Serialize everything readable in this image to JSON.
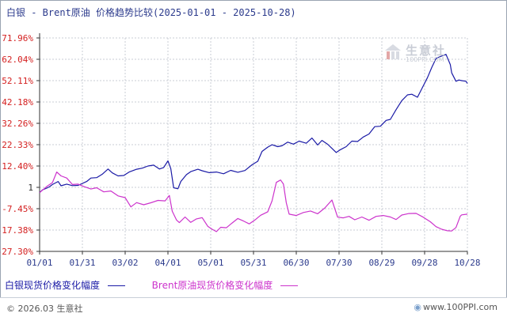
{
  "header": {
    "title": "白银 - Brent原油 价格趋势比较(2025-01-01 - 2025-10-28)"
  },
  "watermark": {
    "name": "生意社",
    "url": "100PPI.COM"
  },
  "legend": {
    "silver_label": "白银现货价格变化幅度",
    "brent_label": "Brent原油现货价格变化幅度"
  },
  "footer": {
    "copyright": "© 2026.03 生意社",
    "site": "www.100PPI.com"
  },
  "colors": {
    "silver": "#1a1aa6",
    "brent": "#cc33cc",
    "grid": "#c8ccd4",
    "tick_red": "#d42020"
  },
  "chart_data": {
    "type": "line",
    "title": "白银 - Brent原油 价格趋势比较(2025-01-01 - 2025-10-28)",
    "x_range": [
      "2025-01-01",
      "2025-10-28"
    ],
    "x_tick_labels": [
      "01/01",
      "01/31",
      "03/02",
      "04/01",
      "05/01",
      "05/31",
      "06/30",
      "07/30",
      "08/29",
      "09/28",
      "10/28"
    ],
    "y_tick_labels": [
      "71.96%",
      "62.04%",
      "52.11%",
      "42.18%",
      "32.26%",
      "22.33%",
      "12.40%",
      "1",
      "-7.45%",
      "-17.38%",
      "-27.30%"
    ],
    "ylim": [
      -27.3,
      71.96
    ],
    "grid": true,
    "legend_position": "bottom",
    "series": [
      {
        "name": "白银现货价格变化幅度",
        "x": [
          "2025-01-01",
          "2025-01-03",
          "2025-01-06",
          "2025-01-08",
          "2025-01-10",
          "2025-01-14",
          "2025-01-16",
          "2025-01-20",
          "2025-01-24",
          "2025-01-28",
          "2025-02-03",
          "2025-02-06",
          "2025-02-10",
          "2025-02-14",
          "2025-02-18",
          "2025-02-21",
          "2025-02-25",
          "2025-03-01",
          "2025-03-05",
          "2025-03-10",
          "2025-03-14",
          "2025-03-18",
          "2025-03-22",
          "2025-03-26",
          "2025-03-29",
          "2025-04-01",
          "2025-04-03",
          "2025-04-05",
          "2025-04-08",
          "2025-04-10",
          "2025-04-14",
          "2025-04-17",
          "2025-04-22",
          "2025-04-25",
          "2025-04-30",
          "2025-05-05",
          "2025-05-10",
          "2025-05-15",
          "2025-05-20",
          "2025-05-25",
          "2025-05-30",
          "2025-06-03",
          "2025-06-06",
          "2025-06-10",
          "2025-06-13",
          "2025-06-17",
          "2025-06-20",
          "2025-06-24",
          "2025-06-28",
          "2025-07-02",
          "2025-07-07",
          "2025-07-11",
          "2025-07-15",
          "2025-07-18",
          "2025-07-22",
          "2025-07-25",
          "2025-07-28",
          "2025-07-31",
          "2025-08-04",
          "2025-08-08",
          "2025-08-12",
          "2025-08-16",
          "2025-08-20",
          "2025-08-24",
          "2025-08-28",
          "2025-09-01",
          "2025-09-04",
          "2025-09-08",
          "2025-09-12",
          "2025-09-16",
          "2025-09-19",
          "2025-09-23",
          "2025-09-26",
          "2025-09-30",
          "2025-10-03",
          "2025-10-06",
          "2025-10-09",
          "2025-10-13",
          "2025-10-16",
          "2025-10-17",
          "2025-10-20",
          "2025-10-22",
          "2025-10-24",
          "2025-10-27",
          "2025-10-28"
        ],
        "values": [
          0.0,
          1.3,
          2.1,
          2.8,
          3.8,
          5.2,
          3.2,
          4.0,
          3.3,
          3.4,
          5.2,
          6.8,
          7.0,
          8.6,
          11.0,
          9.2,
          7.8,
          8.0,
          9.7,
          10.9,
          11.4,
          12.4,
          12.8,
          11.0,
          11.7,
          14.8,
          11.2,
          2.3,
          1.8,
          5.2,
          8.4,
          9.8,
          10.9,
          10.2,
          9.3,
          9.6,
          8.8,
          10.4,
          9.5,
          10.3,
          13.0,
          14.6,
          19.2,
          21.2,
          22.3,
          21.4,
          21.8,
          23.5,
          22.6,
          24.0,
          23.0,
          25.4,
          22.2,
          24.3,
          22.5,
          20.6,
          18.7,
          20.0,
          21.4,
          24.0,
          23.8,
          25.9,
          27.3,
          30.7,
          30.9,
          33.6,
          34.1,
          38.6,
          42.8,
          45.5,
          45.8,
          44.4,
          48.3,
          53.5,
          58.2,
          62.4,
          63.3,
          64.3,
          59.6,
          55.7,
          51.8,
          52.4,
          52.1,
          51.8,
          50.8
        ]
      },
      {
        "name": "Brent原油现货价格变化幅度",
        "x": [
          "2025-01-01",
          "2025-01-06",
          "2025-01-10",
          "2025-01-13",
          "2025-01-16",
          "2025-01-20",
          "2025-01-24",
          "2025-01-28",
          "2025-02-01",
          "2025-02-06",
          "2025-02-10",
          "2025-02-15",
          "2025-02-20",
          "2025-02-25",
          "2025-03-02",
          "2025-03-06",
          "2025-03-10",
          "2025-03-15",
          "2025-03-20",
          "2025-03-25",
          "2025-03-30",
          "2025-04-02",
          "2025-04-04",
          "2025-04-07",
          "2025-04-09",
          "2025-04-13",
          "2025-04-17",
          "2025-04-21",
          "2025-04-25",
          "2025-04-29",
          "2025-05-02",
          "2025-05-05",
          "2025-05-08",
          "2025-05-12",
          "2025-05-16",
          "2025-05-20",
          "2025-05-24",
          "2025-05-28",
          "2025-06-01",
          "2025-06-05",
          "2025-06-10",
          "2025-06-13",
          "2025-06-16",
          "2025-06-19",
          "2025-06-21",
          "2025-06-23",
          "2025-06-25",
          "2025-06-30",
          "2025-07-05",
          "2025-07-10",
          "2025-07-15",
          "2025-07-20",
          "2025-07-25",
          "2025-07-29",
          "2025-08-02",
          "2025-08-06",
          "2025-08-10",
          "2025-08-15",
          "2025-08-20",
          "2025-08-25",
          "2025-08-30",
          "2025-09-04",
          "2025-09-08",
          "2025-09-12",
          "2025-09-17",
          "2025-09-22",
          "2025-09-27",
          "2025-10-02",
          "2025-10-06",
          "2025-10-10",
          "2025-10-14",
          "2025-10-17",
          "2025-10-20",
          "2025-10-23",
          "2025-10-24",
          "2025-10-28"
        ],
        "values": [
          0.0,
          2.9,
          4.7,
          9.6,
          7.8,
          6.8,
          3.8,
          4.0,
          2.9,
          1.7,
          2.3,
          0.4,
          0.8,
          -1.5,
          -2.3,
          -6.6,
          -4.6,
          -5.6,
          -4.7,
          -3.6,
          -3.8,
          -1.3,
          -8.6,
          -12.7,
          -13.9,
          -11.3,
          -13.8,
          -12.2,
          -11.6,
          -15.7,
          -17.0,
          -18.1,
          -16.1,
          -16.3,
          -14.1,
          -12.0,
          -13.2,
          -14.5,
          -12.7,
          -10.5,
          -8.9,
          -3.8,
          4.8,
          5.9,
          4.0,
          -4.7,
          -10.0,
          -10.6,
          -9.2,
          -8.5,
          -9.8,
          -7.1,
          -3.4,
          -11.4,
          -11.7,
          -11.0,
          -12.6,
          -11.3,
          -12.8,
          -11.0,
          -10.6,
          -11.3,
          -12.5,
          -10.4,
          -9.7,
          -9.6,
          -11.4,
          -13.5,
          -15.8,
          -17.0,
          -17.7,
          -17.8,
          -16.2,
          -10.9,
          -10.3,
          -10.0
        ]
      }
    ]
  }
}
